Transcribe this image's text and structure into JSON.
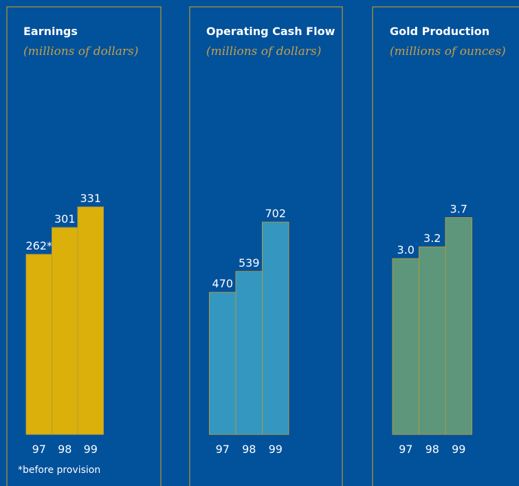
{
  "chart_data": [
    {
      "type": "bar",
      "title": "Earnings",
      "subtitle": "(millions of dollars)",
      "categories": [
        "97",
        "98",
        "99"
      ],
      "values": [
        262,
        301,
        331
      ],
      "labels": [
        "262*",
        "301",
        "331"
      ],
      "ylim": [
        0,
        440
      ],
      "color": "#dbb00a",
      "footnote": "*before provision"
    },
    {
      "type": "bar",
      "title": "Operating Cash Flow",
      "subtitle": "(millions of dollars)",
      "categories": [
        "97",
        "98",
        "99"
      ],
      "values": [
        470,
        539,
        702
      ],
      "labels": [
        "470",
        "539",
        "702"
      ],
      "ylim": [
        0,
        1000
      ],
      "color": "#3397bf"
    },
    {
      "type": "bar",
      "title": "Gold Production",
      "subtitle": "(millions of ounces)",
      "categories": [
        "97",
        "98",
        "99"
      ],
      "values": [
        3.0,
        3.2,
        3.7
      ],
      "labels": [
        "3.0",
        "3.2",
        "3.7"
      ],
      "ylim": [
        0,
        5.16
      ],
      "color": "#5d967b"
    }
  ]
}
